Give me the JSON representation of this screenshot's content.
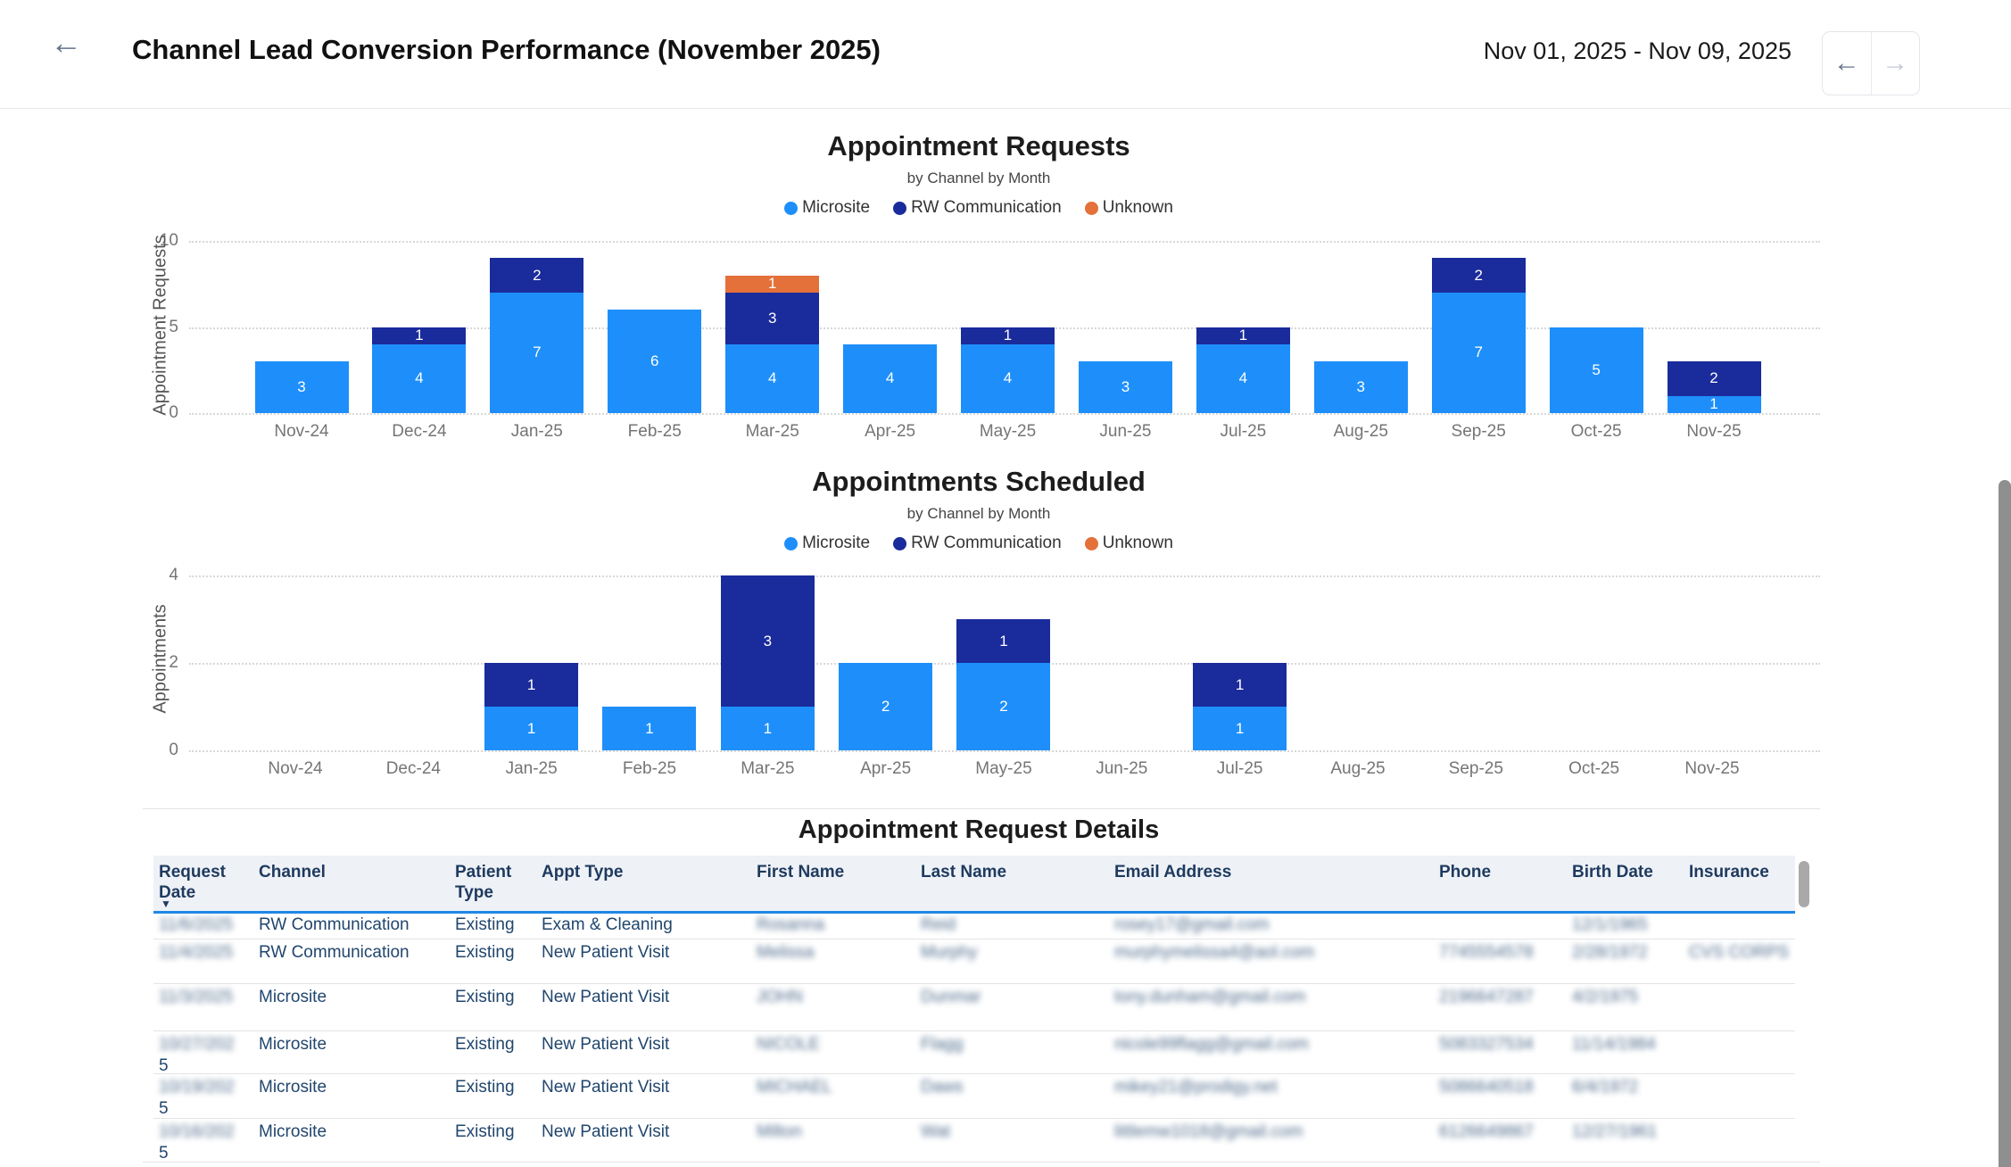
{
  "header": {
    "title": "Channel Lead Conversion Performance (November 2025)",
    "date_range": "Nov 01, 2025 - Nov 09, 2025",
    "back_icon": "←",
    "prev_icon": "←",
    "next_icon": "→"
  },
  "colors": {
    "microsite": "#1e8ffa",
    "rw_communication": "#1a2b9b",
    "unknown": "#e4703a",
    "header_underline": "#1e88e5",
    "table_header_bg": "#eef1f6",
    "table_text": "#21466e"
  },
  "chart_data": [
    {
      "type": "bar",
      "stacked": true,
      "title": "Appointment Requests",
      "subtitle": "by Channel by Month",
      "xlabel": "",
      "ylabel": "Appointment Requests",
      "ylim": [
        0,
        10
      ],
      "yticks": [
        0,
        5,
        10
      ],
      "grid": "dotted-horizontal",
      "legend_position": "top",
      "categories": [
        "Nov-24",
        "Dec-24",
        "Jan-25",
        "Feb-25",
        "Mar-25",
        "Apr-25",
        "May-25",
        "Jun-25",
        "Jul-25",
        "Aug-25",
        "Sep-25",
        "Oct-25",
        "Nov-25"
      ],
      "series": [
        {
          "name": "Microsite",
          "color": "#1e8ffa",
          "values": [
            3,
            4,
            7,
            6,
            4,
            4,
            4,
            3,
            4,
            3,
            7,
            5,
            1
          ]
        },
        {
          "name": "RW Communication",
          "color": "#1a2b9b",
          "values": [
            0,
            1,
            2,
            0,
            3,
            0,
            1,
            0,
            1,
            0,
            2,
            0,
            2
          ]
        },
        {
          "name": "Unknown",
          "color": "#e4703a",
          "values": [
            0,
            0,
            0,
            0,
            1,
            0,
            0,
            0,
            0,
            0,
            0,
            0,
            0
          ]
        }
      ]
    },
    {
      "type": "bar",
      "stacked": true,
      "title": "Appointments Scheduled",
      "subtitle": "by Channel by Month",
      "xlabel": "",
      "ylabel": "Appointments",
      "ylim": [
        0,
        4
      ],
      "yticks": [
        0,
        2,
        4
      ],
      "grid": "dotted-horizontal",
      "legend_position": "top",
      "categories": [
        "Nov-24",
        "Dec-24",
        "Jan-25",
        "Feb-25",
        "Mar-25",
        "Apr-25",
        "May-25",
        "Jun-25",
        "Jul-25",
        "Aug-25",
        "Sep-25",
        "Oct-25",
        "Nov-25"
      ],
      "series": [
        {
          "name": "Microsite",
          "color": "#1e8ffa",
          "values": [
            0,
            0,
            1,
            1,
            1,
            2,
            2,
            0,
            1,
            0,
            0,
            0,
            0
          ]
        },
        {
          "name": "RW Communication",
          "color": "#1a2b9b",
          "values": [
            0,
            0,
            1,
            0,
            3,
            0,
            1,
            0,
            1,
            0,
            0,
            0,
            0
          ]
        },
        {
          "name": "Unknown",
          "color": "#e4703a",
          "values": [
            0,
            0,
            0,
            0,
            0,
            0,
            0,
            0,
            0,
            0,
            0,
            0,
            0
          ]
        }
      ]
    }
  ],
  "table": {
    "title": "Appointment Request Details",
    "sort_column": "Request Date",
    "sort_icon": "▼",
    "columns": [
      "Request Date",
      "Channel",
      "Patient Type",
      "Appt Type",
      "First Name",
      "Last Name",
      "Email Address",
      "Phone",
      "Birth Date",
      "Insurance"
    ],
    "rows": [
      {
        "request_date": "11/6/2025",
        "request_date_wrap": "",
        "channel": "RW Communication",
        "patient_type": "Existing",
        "appt_type": "Exam & Cleaning",
        "first_name": "Rosanna",
        "last_name": "Reid",
        "email": "rosey17@gmail.com",
        "phone": "",
        "birth_date": "12/1/1965",
        "insurance": ""
      },
      {
        "request_date": "11/4/2025",
        "request_date_wrap": "",
        "channel": "RW Communication",
        "patient_type": "Existing",
        "appt_type": "New Patient Visit",
        "first_name": "Melissa",
        "last_name": "Murphy",
        "email": "murphymelissa4@aol.com",
        "phone": "7745554578",
        "birth_date": "2/28/1972",
        "insurance": "CVS CORPS"
      },
      {
        "request_date": "11/3/2025",
        "request_date_wrap": "",
        "channel": "Microsite",
        "patient_type": "Existing",
        "appt_type": "New Patient Visit",
        "first_name": "JOHN",
        "last_name": "Dunmar",
        "email": "tony.dunham@gmail.com",
        "phone": "2196647287",
        "birth_date": "4/2/1975",
        "insurance": ""
      },
      {
        "request_date": "10/27/202",
        "request_date_wrap": "5",
        "channel": "Microsite",
        "patient_type": "Existing",
        "appt_type": "New Patient Visit",
        "first_name": "NICOLE",
        "last_name": "Flagg",
        "email": "nicole99flagg@gmail.com",
        "phone": "5083327534",
        "birth_date": "11/14/1984",
        "insurance": ""
      },
      {
        "request_date": "10/19/202",
        "request_date_wrap": "5",
        "channel": "Microsite",
        "patient_type": "Existing",
        "appt_type": "New Patient Visit",
        "first_name": "MICHAEL",
        "last_name": "Daws",
        "email": "mikey21@prodigy.net",
        "phone": "5086640518",
        "birth_date": "6/4/1972",
        "insurance": ""
      },
      {
        "request_date": "10/16/202",
        "request_date_wrap": "5",
        "channel": "Microsite",
        "patient_type": "Existing",
        "appt_type": "New Patient Visit",
        "first_name": "Milton",
        "last_name": "Wat",
        "email": "littlemw1018@gmail.com",
        "phone": "6126649867",
        "birth_date": "12/27/1961",
        "insurance": ""
      }
    ]
  }
}
